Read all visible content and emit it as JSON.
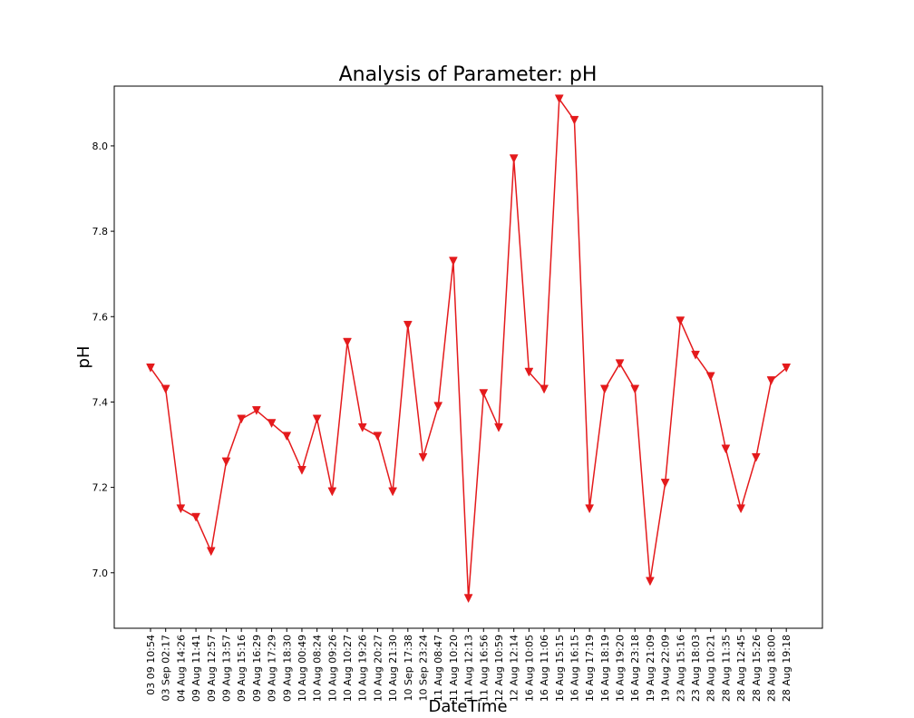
{
  "chart_data": {
    "type": "line",
    "title": "Analysis of Parameter: pH",
    "xlabel": "DateTime",
    "ylabel": "pH",
    "ylim": [
      6.87,
      8.14
    ],
    "yticks": [
      "7.0",
      "7.2",
      "7.4",
      "7.6",
      "7.8",
      "8.0"
    ],
    "grid": false,
    "marker": "triangle-down",
    "color": "#e41a1c",
    "categories": [
      "03 09 10:54",
      "03 Sep 02:17",
      "04 Aug 14:26",
      "09 Aug 11:41",
      "09 Aug 12:57",
      "09 Aug 13:57",
      "09 Aug 15:16",
      "09 Aug 16:29",
      "09 Aug 17:29",
      "09 Aug 18:30",
      "10 Aug 00:49",
      "10 Aug 08:24",
      "10 Aug 09:26",
      "10 Aug 10:27",
      "10 Aug 19:26",
      "10 Aug 20:27",
      "10 Aug 21:30",
      "10 Sep 17:38",
      "10 Sep 23:24",
      "11 Aug 08:47",
      "11 Aug 10:20",
      "11 Aug 12:13",
      "11 Aug 16:56",
      "12 Aug 10:59",
      "12 Aug 12:14",
      "16 Aug 10:05",
      "16 Aug 11:06",
      "16 Aug 15:15",
      "16 Aug 16:15",
      "16 Aug 17:19",
      "16 Aug 18:19",
      "16 Aug 19:20",
      "16 Aug 23:18",
      "19 Aug 21:09",
      "19 Aug 22:09",
      "23 Aug 15:16",
      "23 Aug 18:03",
      "28 Aug 10:21",
      "28 Aug 11:35",
      "28 Aug 12:45",
      "28 Aug 15:26",
      "28 Aug 18:00",
      "28 Aug 19:18"
    ],
    "series": [
      {
        "values": [
          7.48,
          7.43,
          7.15,
          7.13,
          7.05,
          7.26,
          7.36,
          7.38,
          7.35,
          7.32,
          7.24,
          7.36,
          7.19,
          7.54,
          7.34,
          7.32,
          7.19,
          7.58,
          7.27,
          7.39,
          7.73,
          6.94,
          7.42,
          7.34,
          7.97,
          7.47,
          7.43,
          8.11,
          8.06,
          7.15,
          7.43,
          7.49,
          7.43,
          6.98,
          7.21,
          7.59,
          7.51,
          7.46,
          7.29,
          7.15,
          7.27,
          7.45,
          7.48
        ]
      }
    ]
  }
}
